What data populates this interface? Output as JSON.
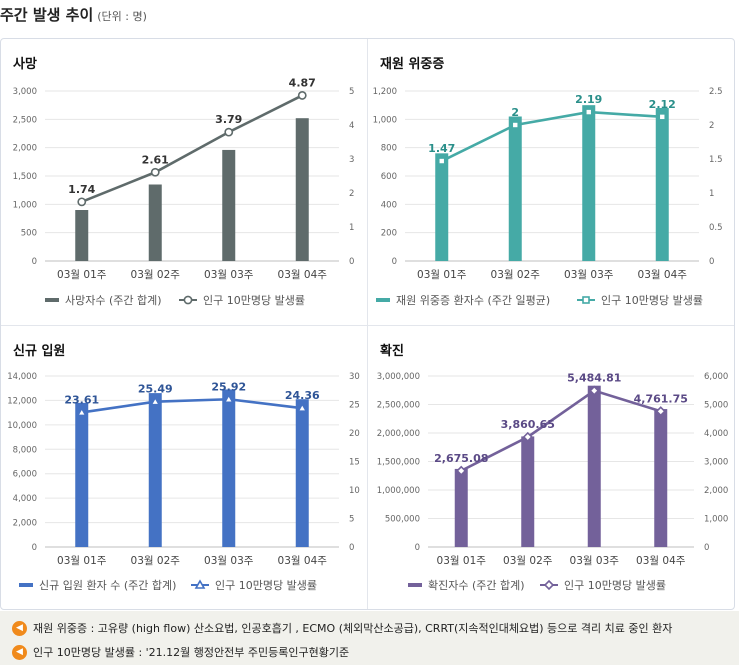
{
  "header": {
    "title": "주간 발생 추이",
    "unit": "(단위 : 명)"
  },
  "charts": [
    {
      "title": "사망",
      "chart_data": {
        "type": "bar",
        "categories": [
          "03월 01주",
          "03월 02주",
          "03월 03주",
          "03월 04주"
        ],
        "series": [
          {
            "name": "사망자수 (주간 합계)",
            "kind": "bar",
            "axis": "left",
            "color": "#5f6b6b",
            "values": [
              900,
              1350,
              1960,
              2520
            ]
          },
          {
            "name": "인구 10만명당 발생률",
            "kind": "line",
            "axis": "right",
            "color": "#5f6b6b",
            "marker": "circle",
            "values": [
              1.74,
              2.61,
              3.79,
              4.87
            ],
            "labels": [
              "1.74",
              "2.61",
              "3.79",
              "4.87"
            ]
          }
        ],
        "ylim": [
          0,
          3000
        ],
        "yticks": [
          "0",
          "500",
          "1,000",
          "1,500",
          "2,000",
          "2,500",
          "3,000"
        ],
        "y2lim": [
          0,
          5
        ],
        "y2ticks": [
          "0",
          "1",
          "2",
          "3",
          "4",
          "5"
        ],
        "label_color": "#333333",
        "legend": "bottom"
      }
    },
    {
      "title": "재원 위중증",
      "chart_data": {
        "type": "bar",
        "categories": [
          "03월 01주",
          "03월 02주",
          "03월 03주",
          "03월 04주"
        ],
        "series": [
          {
            "name": "재원 위중증 환자수 (주간 일평균)",
            "kind": "bar",
            "axis": "left",
            "color": "#45aaa6",
            "values": [
              760,
              1020,
              1100,
              1080
            ]
          },
          {
            "name": "인구 10만명당 발생률",
            "kind": "line",
            "axis": "right",
            "color": "#45aaa6",
            "marker": "square",
            "values": [
              1.47,
              2.0,
              2.19,
              2.12
            ],
            "labels": [
              "1.47",
              "2",
              "2.19",
              "2.12"
            ]
          }
        ],
        "ylim": [
          0,
          1200
        ],
        "yticks": [
          "0",
          "200",
          "400",
          "600",
          "800",
          "1,000",
          "1,200"
        ],
        "y2lim": [
          0,
          2.5
        ],
        "y2ticks": [
          "0",
          "0.5",
          "1",
          "1.5",
          "2",
          "2.5"
        ],
        "label_color": "#2a8f8a",
        "legend": "bottom"
      }
    },
    {
      "title": "신규 입원",
      "chart_data": {
        "type": "bar",
        "categories": [
          "03월 01주",
          "03월 02주",
          "03월 03주",
          "03월 04주"
        ],
        "series": [
          {
            "name": "신규 입원 환자 수 (주간 합계)",
            "kind": "bar",
            "axis": "left",
            "color": "#4472c4",
            "values": [
              11800,
              12600,
              12900,
              12100
            ]
          },
          {
            "name": "인구 10만명당 발생률",
            "kind": "line",
            "axis": "right",
            "color": "#4472c4",
            "marker": "triangle",
            "values": [
              23.61,
              25.49,
              25.92,
              24.36
            ],
            "labels": [
              "23.61",
              "25.49",
              "25.92",
              "24.36"
            ]
          }
        ],
        "ylim": [
          0,
          14000
        ],
        "yticks": [
          "0",
          "2,000",
          "4,000",
          "6,000",
          "8,000",
          "10,000",
          "12,000",
          "14,000"
        ],
        "y2lim": [
          0,
          30
        ],
        "y2ticks": [
          "0",
          "5",
          "10",
          "15",
          "20",
          "25",
          "30"
        ],
        "label_color": "#2f5597",
        "legend": "bottom"
      }
    },
    {
      "title": "확진",
      "chart_data": {
        "type": "bar",
        "categories": [
          "03월 01주",
          "03월 02주",
          "03월 03주",
          "03월 04주"
        ],
        "series": [
          {
            "name": "확진자수 (주간 합계)",
            "kind": "bar",
            "axis": "left",
            "color": "#73619a",
            "values": [
              1370000,
              1940000,
              2830000,
              2420000
            ]
          },
          {
            "name": "인구 10만명당 발생률",
            "kind": "line",
            "axis": "right",
            "color": "#73619a",
            "marker": "diamond",
            "values": [
              2675.08,
              3860.65,
              5484.81,
              4761.75
            ],
            "labels": [
              "2,675.08",
              "3,860.65",
              "5,484.81",
              "4,761.75"
            ]
          }
        ],
        "ylim": [
          0,
          3000000
        ],
        "yticks": [
          "0",
          "500,000",
          "1,000,000",
          "1,500,000",
          "2,000,000",
          "2,500,000",
          "3,000,000"
        ],
        "y2lim": [
          0,
          6000
        ],
        "y2ticks": [
          "0",
          "1,000",
          "2,000",
          "3,000",
          "4,000",
          "5,000",
          "6,000"
        ],
        "label_color": "#5b4a86",
        "legend": "bottom"
      }
    }
  ],
  "notes": [
    {
      "icon": "speaker-icon",
      "text": "재원 위중증 : 고유량 (high flow) 산소요법, 인공호흡기 , ECMO (체외막산소공급), CRRT(지속적인대체요법) 등으로 격리 치료 중인 환자"
    },
    {
      "icon": "speaker-icon",
      "text": "인구 10만명당 발생률 : '21.12월 행정안전부 주민등록인구현황기준"
    }
  ]
}
